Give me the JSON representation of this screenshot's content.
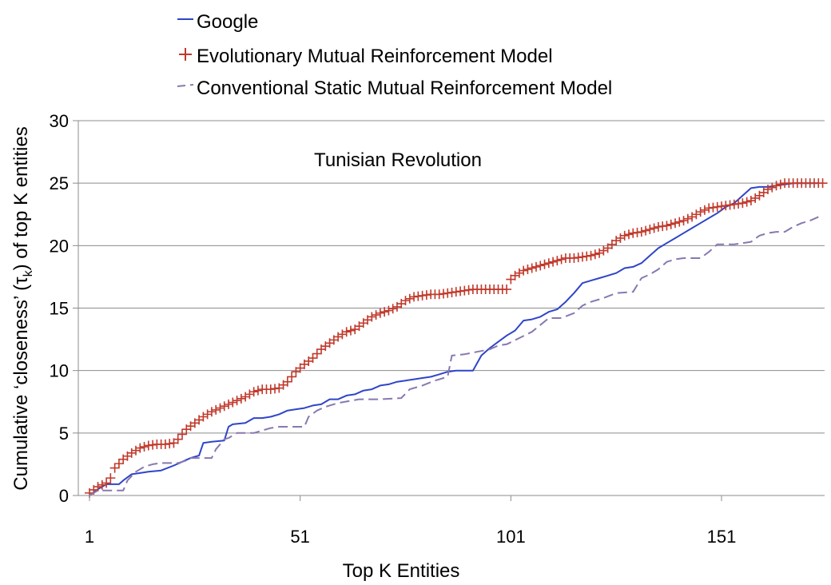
{
  "chart_data": {
    "type": "line",
    "title": "",
    "annotation": "Tunisian Revolution",
    "xlabel": "Top K Entities",
    "ylabel_parts": [
      "Cumulative ‘closeness’ (τ",
      "k",
      ") of top K entities"
    ],
    "xlim": [
      1,
      175
    ],
    "ylim": [
      0,
      30
    ],
    "xticks": [
      1,
      51,
      101,
      151
    ],
    "xtick_labels": [
      "1",
      "51",
      "101",
      "151"
    ],
    "yticks": [
      0,
      5,
      10,
      15,
      20,
      25,
      30
    ],
    "ytick_labels": [
      "0",
      "5",
      "10",
      "15",
      "20",
      "25",
      "30"
    ],
    "grid": "horizontal",
    "legend_position": "top",
    "series": [
      {
        "name": "Google",
        "color": "#2f45c8",
        "style": "solid",
        "x": [
          1,
          3,
          5,
          8,
          9,
          11,
          13,
          15,
          18,
          21,
          23,
          25,
          27,
          28,
          30,
          33,
          34,
          35,
          38,
          40,
          42,
          44,
          46,
          48,
          50,
          52,
          54,
          56,
          58,
          60,
          62,
          64,
          66,
          68,
          70,
          72,
          74,
          76,
          78,
          80,
          82,
          84,
          86,
          88,
          90,
          92,
          94,
          96,
          98,
          100,
          102,
          104,
          106,
          108,
          110,
          112,
          114,
          116,
          118,
          120,
          122,
          124,
          126,
          128,
          130,
          132,
          134,
          136,
          138,
          140,
          142,
          144,
          146,
          148,
          150,
          152,
          154,
          156,
          158,
          160,
          162,
          164,
          166,
          168,
          170,
          172,
          174
        ],
        "values": [
          0,
          0.5,
          0.9,
          0.9,
          1.2,
          1.7,
          1.8,
          1.9,
          2.0,
          2.4,
          2.7,
          3.0,
          3.2,
          4.2,
          4.3,
          4.4,
          5.5,
          5.7,
          5.8,
          6.2,
          6.2,
          6.3,
          6.5,
          6.8,
          6.9,
          7.0,
          7.2,
          7.3,
          7.7,
          7.7,
          8.0,
          8.1,
          8.4,
          8.5,
          8.8,
          8.9,
          9.1,
          9.2,
          9.3,
          9.4,
          9.5,
          9.7,
          9.9,
          10.0,
          10.0,
          10.0,
          11.2,
          11.8,
          12.3,
          12.8,
          13.2,
          14.0,
          14.1,
          14.3,
          14.7,
          14.9,
          15.5,
          16.2,
          17.0,
          17.2,
          17.4,
          17.6,
          17.8,
          18.2,
          18.3,
          18.6,
          19.2,
          19.8,
          20.2,
          20.6,
          21.0,
          21.4,
          21.8,
          22.2,
          22.6,
          23.1,
          23.4,
          24.0,
          24.6,
          24.7,
          24.7,
          24.8,
          24.9,
          25.0,
          25.0,
          25.0,
          25.0
        ]
      },
      {
        "name": "Evolutionary Mutual Reinforcement Model",
        "color": "#c0392b",
        "style": "markers-plus",
        "x": [
          1,
          3,
          5,
          6,
          7,
          9,
          11,
          13,
          15,
          17,
          19,
          21,
          22,
          24,
          26,
          28,
          30,
          32,
          34,
          36,
          38,
          40,
          42,
          44,
          46,
          48,
          50,
          52,
          54,
          56,
          58,
          60,
          62,
          64,
          66,
          68,
          70,
          72,
          74,
          76,
          78,
          80,
          82,
          84,
          86,
          88,
          90,
          92,
          94,
          96,
          98,
          100,
          101,
          102,
          104,
          106,
          108,
          110,
          112,
          114,
          116,
          118,
          120,
          122,
          124,
          126,
          128,
          130,
          132,
          134,
          136,
          138,
          140,
          142,
          144,
          146,
          148,
          150,
          152,
          154,
          156,
          158,
          160,
          162,
          164,
          166,
          168,
          170,
          172,
          174
        ],
        "values": [
          0.2,
          0.7,
          1.0,
          1.4,
          2.2,
          2.9,
          3.4,
          3.8,
          4.0,
          4.1,
          4.1,
          4.2,
          4.5,
          5.3,
          5.8,
          6.3,
          6.7,
          7.0,
          7.3,
          7.6,
          7.9,
          8.3,
          8.5,
          8.5,
          8.6,
          9.1,
          9.9,
          10.5,
          11.0,
          11.7,
          12.2,
          12.7,
          13.1,
          13.3,
          13.8,
          14.3,
          14.6,
          14.8,
          15.1,
          15.6,
          15.9,
          16.0,
          16.1,
          16.1,
          16.2,
          16.3,
          16.4,
          16.5,
          16.5,
          16.5,
          16.5,
          16.5,
          17.3,
          17.6,
          18.0,
          18.2,
          18.4,
          18.6,
          18.8,
          19.0,
          19.0,
          19.1,
          19.2,
          19.4,
          19.8,
          20.4,
          20.8,
          21.0,
          21.1,
          21.3,
          21.5,
          21.6,
          21.8,
          22.0,
          22.3,
          22.7,
          23.0,
          23.1,
          23.2,
          23.3,
          23.4,
          23.6,
          24.0,
          24.5,
          24.8,
          25.0,
          25.0,
          25.0,
          25.0,
          25.0
        ]
      },
      {
        "name": "Conventional Static Mutual Reinforcement Model",
        "color": "#8878b0",
        "style": "dashed",
        "x": [
          1,
          3,
          5,
          7,
          9,
          10,
          12,
          14,
          16,
          18,
          20,
          22,
          24,
          25,
          27,
          30,
          31,
          33,
          34,
          36,
          40,
          42,
          44,
          46,
          48,
          50,
          52,
          53,
          55,
          57,
          60,
          65,
          68,
          70,
          75,
          77,
          80,
          83,
          86,
          87,
          90,
          93,
          96,
          98,
          100,
          103,
          106,
          110,
          113,
          116,
          118,
          120,
          123,
          126,
          130,
          132,
          134,
          136,
          138,
          140,
          142,
          144,
          146,
          148,
          150,
          152,
          154,
          156,
          158,
          160,
          162,
          164,
          166,
          168,
          170,
          172,
          174
        ],
        "values": [
          0,
          0.4,
          0.4,
          0.4,
          0.4,
          1.2,
          1.9,
          2.3,
          2.5,
          2.6,
          2.6,
          2.6,
          2.8,
          3.0,
          3.0,
          3.0,
          3.7,
          4.5,
          4.6,
          5.0,
          5.0,
          5.2,
          5.4,
          5.5,
          5.5,
          5.5,
          5.5,
          6.3,
          6.8,
          7.1,
          7.4,
          7.7,
          7.7,
          7.7,
          7.8,
          8.5,
          8.8,
          9.2,
          9.5,
          11.2,
          11.3,
          11.5,
          11.7,
          12.0,
          12.1,
          12.6,
          13.1,
          14.2,
          14.2,
          14.6,
          15.2,
          15.5,
          15.8,
          16.2,
          16.3,
          17.4,
          17.7,
          18.1,
          18.7,
          18.9,
          19.0,
          19.0,
          19.0,
          19.5,
          20.1,
          20.1,
          20.1,
          20.2,
          20.3,
          20.8,
          21.0,
          21.1,
          21.1,
          21.5,
          21.8,
          22.0,
          22.3
        ]
      }
    ]
  }
}
